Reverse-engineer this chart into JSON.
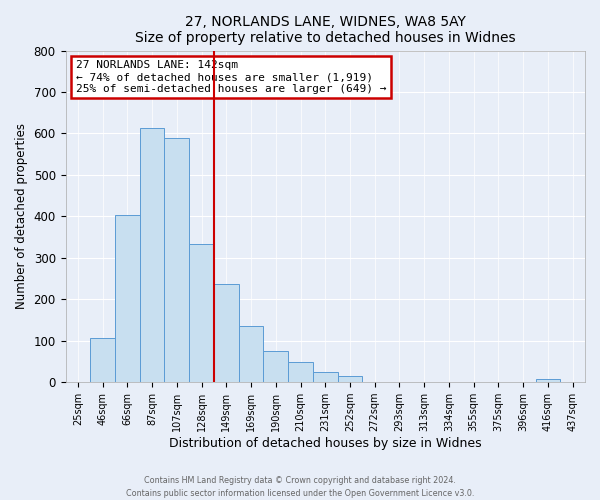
{
  "title": "27, NORLANDS LANE, WIDNES, WA8 5AY",
  "subtitle": "Size of property relative to detached houses in Widnes",
  "xlabel": "Distribution of detached houses by size in Widnes",
  "ylabel": "Number of detached properties",
  "bar_labels": [
    "25sqm",
    "46sqm",
    "66sqm",
    "87sqm",
    "107sqm",
    "128sqm",
    "149sqm",
    "169sqm",
    "190sqm",
    "210sqm",
    "231sqm",
    "252sqm",
    "272sqm",
    "293sqm",
    "313sqm",
    "334sqm",
    "355sqm",
    "375sqm",
    "396sqm",
    "416sqm",
    "437sqm"
  ],
  "bar_values": [
    0,
    106,
    403,
    614,
    590,
    333,
    237,
    136,
    76,
    49,
    25,
    15,
    0,
    0,
    0,
    0,
    0,
    0,
    0,
    8,
    0
  ],
  "bar_color": "#c8dff0",
  "bar_edge_color": "#5b9bd5",
  "vline_color": "#cc0000",
  "annotation_title": "27 NORLANDS LANE: 142sqm",
  "annotation_line1": "← 74% of detached houses are smaller (1,919)",
  "annotation_line2": "25% of semi-detached houses are larger (649) →",
  "annotation_box_color": "#ffffff",
  "annotation_box_edge": "#cc0000",
  "ylim": [
    0,
    800
  ],
  "yticks": [
    0,
    100,
    200,
    300,
    400,
    500,
    600,
    700,
    800
  ],
  "bg_color": "#e8eef8",
  "grid_color": "#ffffff",
  "footer1": "Contains HM Land Registry data © Crown copyright and database right 2024.",
  "footer2": "Contains public sector information licensed under the Open Government Licence v3.0."
}
